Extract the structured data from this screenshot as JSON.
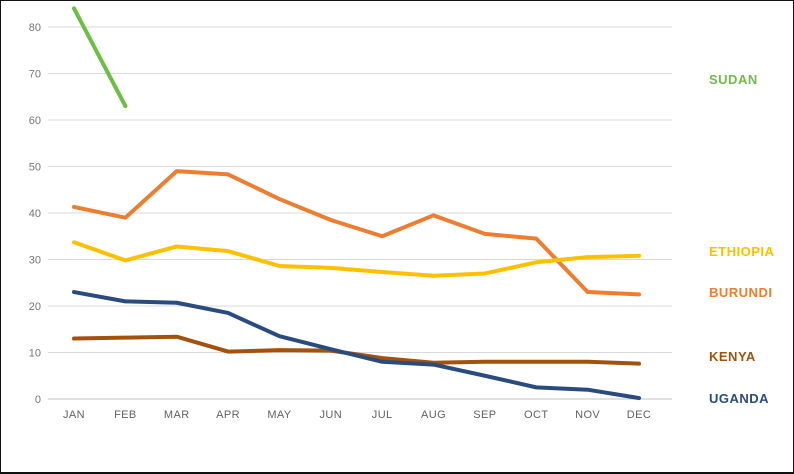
{
  "chart_data": {
    "type": "line",
    "title": "",
    "categories": [
      "JAN",
      "FEB",
      "MAR",
      "APR",
      "MAY",
      "JUN",
      "JUL",
      "AUG",
      "SEP",
      "OCT",
      "NOV",
      "DEC"
    ],
    "ylim": [
      0,
      80
    ],
    "yticks": [
      0,
      10,
      20,
      30,
      40,
      50,
      60,
      70,
      80
    ],
    "grid": "horizontal",
    "legend_position": "right",
    "series": [
      {
        "name": "SUDAN",
        "color": "#6cbe45",
        "values": [
          84,
          63,
          null,
          null,
          null,
          null,
          null,
          null,
          null,
          null,
          null,
          null
        ]
      },
      {
        "name": "ETHIOPIA",
        "color": "#ffc000",
        "values": [
          33.7,
          29.8,
          32.8,
          31.8,
          28.6,
          28.2,
          27.3,
          26.5,
          27.0,
          29.4,
          30.5,
          30.8
        ]
      },
      {
        "name": "BURUNDI",
        "color": "#ed7d31",
        "values": [
          41.3,
          39.0,
          49.0,
          48.3,
          43.0,
          38.5,
          35.0,
          39.5,
          35.5,
          34.5,
          23.0,
          22.5
        ]
      },
      {
        "name": "KENYA",
        "color": "#a3520e",
        "values": [
          13.0,
          13.2,
          13.4,
          10.2,
          10.5,
          10.4,
          8.8,
          7.8,
          8.0,
          8.0,
          8.0,
          7.6
        ]
      },
      {
        "name": "UGANDA",
        "color": "#2a4b7e",
        "values": [
          23.0,
          21.0,
          20.7,
          18.5,
          13.5,
          10.7,
          8.0,
          7.4,
          5.0,
          2.5,
          2.0,
          0.2
        ]
      }
    ],
    "gridline_color": "#d9d9d9",
    "axis_line_color": "#c3c3c3"
  }
}
